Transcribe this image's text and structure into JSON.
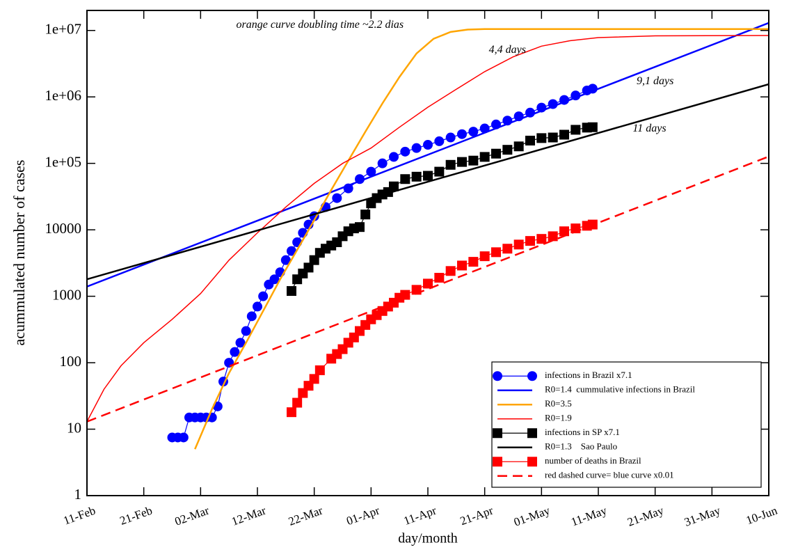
{
  "chart_data": {
    "type": "line",
    "xlabel": "day/month",
    "ylabel": "acummulated number of cases",
    "xlim": [
      0,
      120
    ],
    "xticks": [
      {
        "value": 0,
        "label": "11-Feb"
      },
      {
        "value": 10,
        "label": "21-Feb"
      },
      {
        "value": 20,
        "label": "02-Mar"
      },
      {
        "value": 30,
        "label": "12-Mar"
      },
      {
        "value": 40,
        "label": "22-Mar"
      },
      {
        "value": 50,
        "label": "01-Apr"
      },
      {
        "value": 60,
        "label": "11-Apr"
      },
      {
        "value": 70,
        "label": "21-Apr"
      },
      {
        "value": 80,
        "label": "01-May"
      },
      {
        "value": 90,
        "label": "11-May"
      },
      {
        "value": 100,
        "label": "21-May"
      },
      {
        "value": 110,
        "label": "31-May"
      },
      {
        "value": 120,
        "label": "10-Jun"
      }
    ],
    "ylim": [
      1,
      20000000
    ],
    "yscale": "log",
    "yticks": [
      1,
      10,
      100,
      1000,
      10000,
      {
        "value": 100000,
        "label": "1e+05"
      },
      {
        "value": 1000000,
        "label": "1e+06"
      },
      {
        "value": 10000000,
        "label": "1e+07"
      }
    ],
    "legend": "lower right",
    "annotations": [
      {
        "text": "orange curve doubling time ~2.2 dias",
        "x": 41,
        "y": 12000000
      },
      {
        "text": "4,4 days",
        "x": 74,
        "y": 5000000
      },
      {
        "text": "9,1 days",
        "x": 100,
        "y": 1700000
      },
      {
        "text": "11 days",
        "x": 99,
        "y": 330000
      }
    ],
    "series": [
      {
        "name": "infections in Brazil x7.1",
        "color": "#0000ff",
        "marker": "circle",
        "line_width": 1.2,
        "x": [
          15,
          16,
          17,
          18,
          19,
          20,
          21,
          22,
          23,
          24,
          25,
          26,
          27,
          28,
          29,
          30,
          31,
          32,
          33,
          34,
          35,
          36,
          37,
          38,
          39,
          40,
          42,
          44,
          46,
          48,
          50,
          52,
          54,
          56,
          58,
          60,
          62,
          64,
          66,
          68,
          70,
          72,
          74,
          76,
          78,
          80,
          82,
          84,
          86,
          88,
          89
        ],
        "values": [
          7.5,
          7.5,
          7.5,
          15,
          15,
          15,
          15,
          15,
          22,
          52,
          100,
          145,
          200,
          300,
          500,
          700,
          1000,
          1500,
          1800,
          2300,
          3500,
          4800,
          6500,
          9000,
          12000,
          16000,
          22000,
          30000,
          42000,
          58000,
          75000,
          100000,
          125000,
          150000,
          170000,
          190000,
          215000,
          245000,
          275000,
          300000,
          335000,
          385000,
          440000,
          510000,
          580000,
          690000,
          780000,
          900000,
          1050000,
          1250000,
          1330000
        ]
      },
      {
        "name": "R0=1.4  cummulative infections in Brazil",
        "color": "#0000ff",
        "marker": "none",
        "line_width": 2.5,
        "x": [
          0,
          120
        ],
        "values": [
          1400,
          13000000
        ]
      },
      {
        "name": "R0=3.5",
        "color": "#ffa500",
        "marker": "none",
        "line_width": 2.5,
        "x": [
          19,
          22,
          25,
          28,
          31,
          34,
          37,
          40,
          43,
          46,
          49,
          52,
          55,
          58,
          61,
          64,
          67,
          70,
          80,
          100,
          120
        ],
        "values": [
          5,
          20,
          70,
          200,
          600,
          1800,
          5000,
          14000,
          40000,
          110000,
          300000,
          800000,
          2000000,
          4500000,
          7500000,
          9500000,
          10300000,
          10500000,
          10500000,
          10500000,
          10500000
        ]
      },
      {
        "name": "R0=1.9",
        "color": "#ff0000",
        "marker": "none",
        "line_width": 1.5,
        "x": [
          0,
          3,
          6,
          10,
          15,
          20,
          25,
          30,
          35,
          40,
          45,
          50,
          55,
          60,
          65,
          70,
          75,
          80,
          85,
          90,
          100,
          120
        ],
        "values": [
          13,
          40,
          90,
          200,
          450,
          1100,
          3500,
          9000,
          22000,
          50000,
          100000,
          170000,
          350000,
          700000,
          1300000,
          2400000,
          4000000,
          5800000,
          7000000,
          7800000,
          8300000,
          8400000
        ]
      },
      {
        "name": "infections in SP x7.1",
        "color": "#000000",
        "marker": "square",
        "line_width": 1.2,
        "x": [
          36,
          37,
          38,
          39,
          40,
          41,
          42,
          43,
          44,
          45,
          46,
          47,
          48,
          49,
          50,
          51,
          52,
          53,
          54,
          56,
          58,
          60,
          62,
          64,
          66,
          68,
          70,
          72,
          74,
          76,
          78,
          80,
          82,
          84,
          86,
          88,
          89
        ],
        "values": [
          1200,
          1800,
          2200,
          2700,
          3500,
          4500,
          5200,
          5800,
          6500,
          8000,
          9500,
          10500,
          11000,
          17000,
          25000,
          30000,
          34000,
          37000,
          45000,
          58000,
          63000,
          65000,
          75000,
          95000,
          105000,
          110000,
          125000,
          140000,
          160000,
          180000,
          220000,
          240000,
          245000,
          270000,
          320000,
          345000,
          350000
        ]
      },
      {
        "name": "R0=1.3    Sao Paulo",
        "color": "#000000",
        "marker": "none",
        "line_width": 2.5,
        "x": [
          0,
          120
        ],
        "values": [
          1800,
          1550000
        ]
      },
      {
        "name": "number of deaths in Brazil",
        "color": "#ff0000",
        "marker": "square",
        "line_width": 1.2,
        "x": [
          36,
          37,
          38,
          39,
          40,
          41,
          43,
          44,
          45,
          46,
          47,
          48,
          49,
          50,
          51,
          52,
          53,
          54,
          55,
          56,
          58,
          60,
          62,
          64,
          66,
          68,
          70,
          72,
          74,
          76,
          78,
          80,
          82,
          84,
          86,
          88,
          89
        ],
        "values": [
          18,
          25,
          35,
          45,
          57,
          77,
          115,
          135,
          160,
          200,
          240,
          300,
          370,
          450,
          520,
          600,
          700,
          800,
          950,
          1050,
          1250,
          1550,
          1900,
          2400,
          2900,
          3300,
          4000,
          4600,
          5200,
          6000,
          6800,
          7300,
          8000,
          9500,
          10500,
          11500,
          12000
        ]
      },
      {
        "name": "red dashed curve= blue curve x0.01",
        "color": "#ff0000",
        "marker": "none",
        "line_width": 2.5,
        "dash": true,
        "x": [
          0,
          120
        ],
        "values": [
          13,
          127000
        ]
      }
    ]
  }
}
